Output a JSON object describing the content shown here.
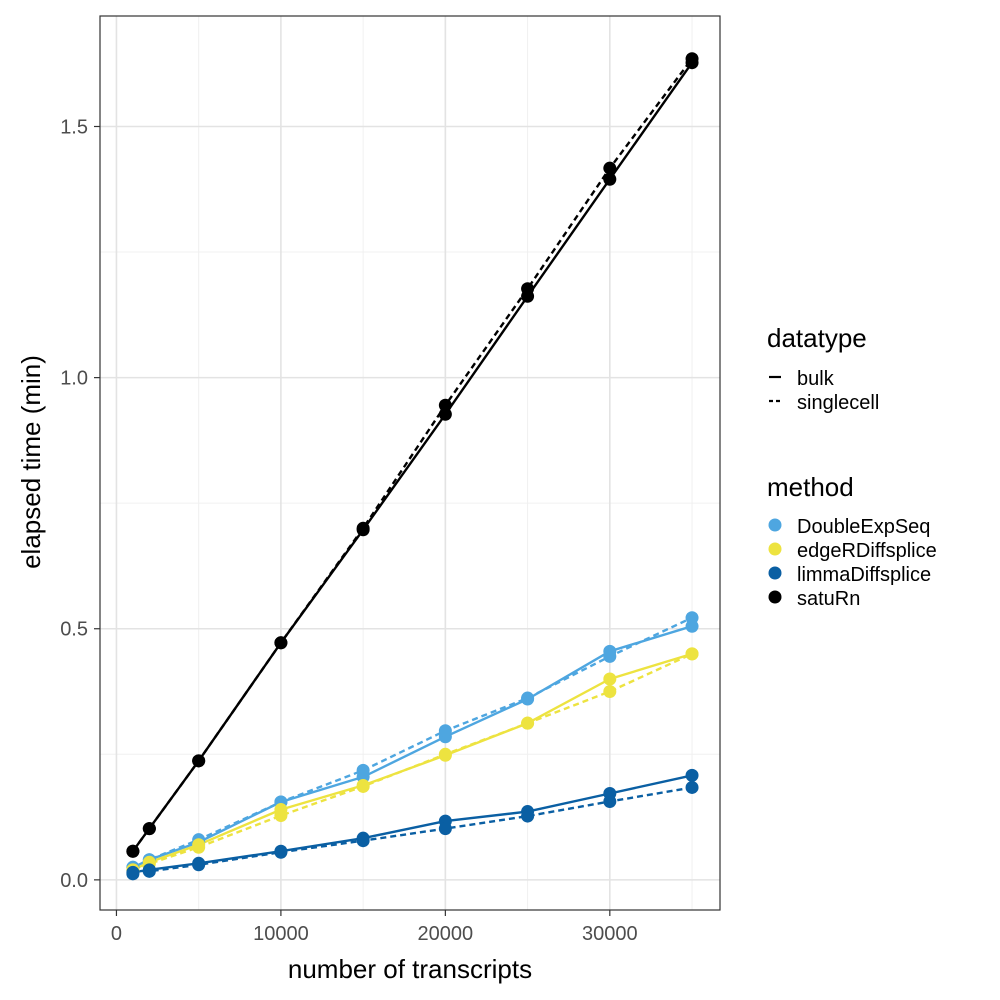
{
  "chart_data": {
    "type": "line",
    "xlabel": "number of transcripts",
    "ylabel": "elapsed  time (min)",
    "xlim": [
      -1000,
      36700
    ],
    "ylim": [
      -0.06,
      1.72
    ],
    "x_ticks": [
      0,
      10000,
      20000,
      30000
    ],
    "x_tick_labels": [
      "0",
      "10000",
      "20000",
      "30000"
    ],
    "y_ticks": [
      0.0,
      0.5,
      1.0,
      1.5
    ],
    "y_tick_labels": [
      "0.0",
      "0.5",
      "1.0",
      "1.5"
    ],
    "grid": true,
    "legend_placement": "right",
    "x": [
      1000,
      2000,
      5000,
      10000,
      15000,
      20000,
      25000,
      30000,
      35000
    ],
    "legend": {
      "datatype": {
        "title": "datatype",
        "entries": [
          {
            "label": "bulk",
            "linetype": "solid"
          },
          {
            "label": "singlecell",
            "linetype": "dashed"
          }
        ]
      },
      "method": {
        "title": "method",
        "entries": [
          {
            "label": "DoubleExpSeq",
            "color": "#4ea6e0"
          },
          {
            "label": "edgeRDiffsplice",
            "color": "#ede340"
          },
          {
            "label": "limmaDiffsplice",
            "color": "#0a5fa3"
          },
          {
            "label": "satuRn",
            "color": "#000000"
          }
        ]
      }
    },
    "series": [
      {
        "method": "DoubleExpSeq",
        "datatype": "bulk",
        "values": [
          0.025,
          0.04,
          0.075,
          0.155,
          0.205,
          0.285,
          0.36,
          0.455,
          0.505
        ]
      },
      {
        "method": "DoubleExpSeq",
        "datatype": "singlecell",
        "values": [
          0.025,
          0.04,
          0.08,
          0.155,
          0.218,
          0.297,
          0.362,
          0.445,
          0.522
        ]
      },
      {
        "method": "edgeRDiffsplice",
        "datatype": "bulk",
        "values": [
          0.02,
          0.035,
          0.07,
          0.14,
          0.188,
          0.248,
          0.312,
          0.4,
          0.45
        ]
      },
      {
        "method": "edgeRDiffsplice",
        "datatype": "singlecell",
        "values": [
          0.02,
          0.032,
          0.065,
          0.128,
          0.186,
          0.25,
          0.312,
          0.375,
          0.45
        ]
      },
      {
        "method": "limmaDiffsplice",
        "datatype": "bulk",
        "values": [
          0.015,
          0.02,
          0.033,
          0.057,
          0.083,
          0.117,
          0.136,
          0.172,
          0.208
        ]
      },
      {
        "method": "limmaDiffsplice",
        "datatype": "singlecell",
        "values": [
          0.012,
          0.017,
          0.03,
          0.055,
          0.078,
          0.102,
          0.127,
          0.156,
          0.184
        ]
      },
      {
        "method": "satuRn",
        "datatype": "bulk",
        "values": [
          0.057,
          0.102,
          0.237,
          0.472,
          0.697,
          0.927,
          1.162,
          1.395,
          1.627
        ]
      },
      {
        "method": "satuRn",
        "datatype": "singlecell",
        "values": [
          0.057,
          0.102,
          0.237,
          0.472,
          0.7,
          0.945,
          1.177,
          1.417,
          1.635
        ]
      }
    ]
  }
}
